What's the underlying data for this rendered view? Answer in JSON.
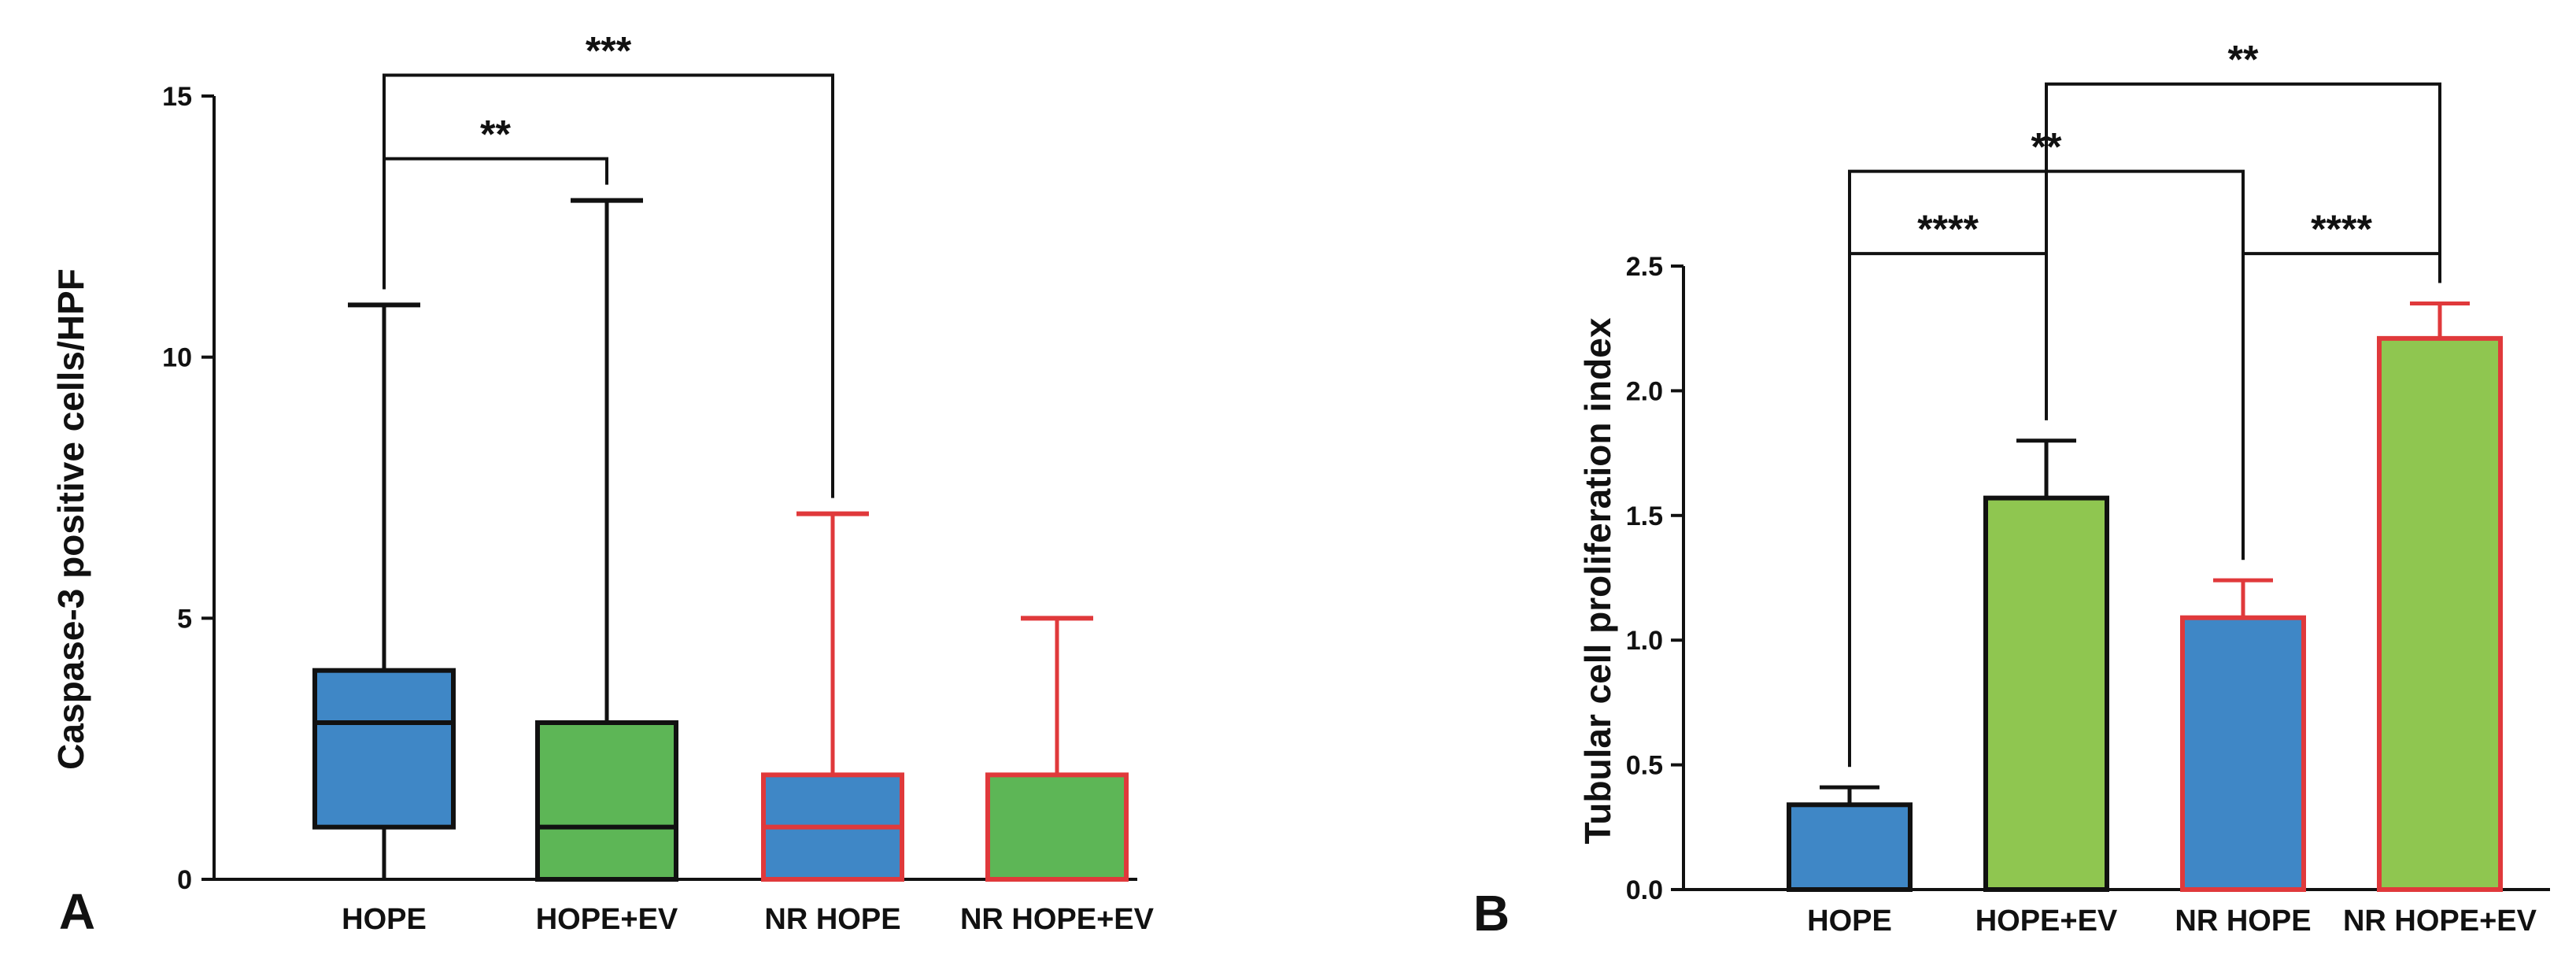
{
  "colors": {
    "blue": "#3f87c6",
    "green_a": "#5db656",
    "green_b": "#8fc650",
    "red": "#e0393b",
    "black": "#111111"
  },
  "chart_data": [
    {
      "type": "box",
      "panel": "A",
      "ylabel": "Caspase-3 positive cells/HPF",
      "ylim": [
        0,
        15
      ],
      "yticks": [
        0,
        5,
        10,
        15
      ],
      "categories": [
        "HOPE",
        "HOPE+EV",
        "NR HOPE",
        "NR HOPE+EV"
      ],
      "boxes": [
        {
          "name": "HOPE",
          "min": 0,
          "q1": 1,
          "median": 3,
          "q3": 4,
          "max": 11,
          "fill": "blue",
          "edge": "black"
        },
        {
          "name": "HOPE+EV",
          "min": 0,
          "q1": 0,
          "median": 1,
          "q3": 3,
          "max": 13,
          "fill": "green_a",
          "edge": "black"
        },
        {
          "name": "NR HOPE",
          "min": 0,
          "q1": 0,
          "median": 1,
          "q3": 2,
          "max": 7,
          "fill": "blue",
          "edge": "red"
        },
        {
          "name": "NR HOPE+EV",
          "min": 0,
          "q1": 0,
          "median": 0,
          "q3": 2,
          "max": 5,
          "fill": "green_a",
          "edge": "red"
        }
      ],
      "significance": [
        {
          "from": 0,
          "to": 1,
          "label": "**",
          "y": 13.8
        },
        {
          "from": 0,
          "to": 2,
          "label": "***",
          "y": 15.4
        }
      ]
    },
    {
      "type": "bar",
      "panel": "B",
      "ylabel": "Tubular cell proliferation index",
      "ylim": [
        0,
        2.5
      ],
      "yticks": [
        "0.0",
        "0.5",
        "1.0",
        "1.5",
        "2.0",
        "2.5"
      ],
      "categories": [
        "HOPE",
        "HOPE+EV",
        "NR HOPE",
        "NR HOPE+EV"
      ],
      "values": [
        0.34,
        1.57,
        1.09,
        2.21
      ],
      "errors": [
        0.07,
        0.23,
        0.15,
        0.14
      ],
      "fills": [
        "blue",
        "green_b",
        "blue",
        "green_b"
      ],
      "edges": [
        "black",
        "black",
        "red",
        "red"
      ],
      "significance": [
        {
          "from": 0,
          "to": 1,
          "label": "****",
          "y": 2.55
        },
        {
          "from": 2,
          "to": 3,
          "label": "****",
          "y": 2.55
        },
        {
          "from": 0,
          "to": 2,
          "label": "**",
          "y": 2.88
        },
        {
          "from": 1,
          "to": 3,
          "label": "**",
          "y": 3.23
        }
      ]
    }
  ]
}
